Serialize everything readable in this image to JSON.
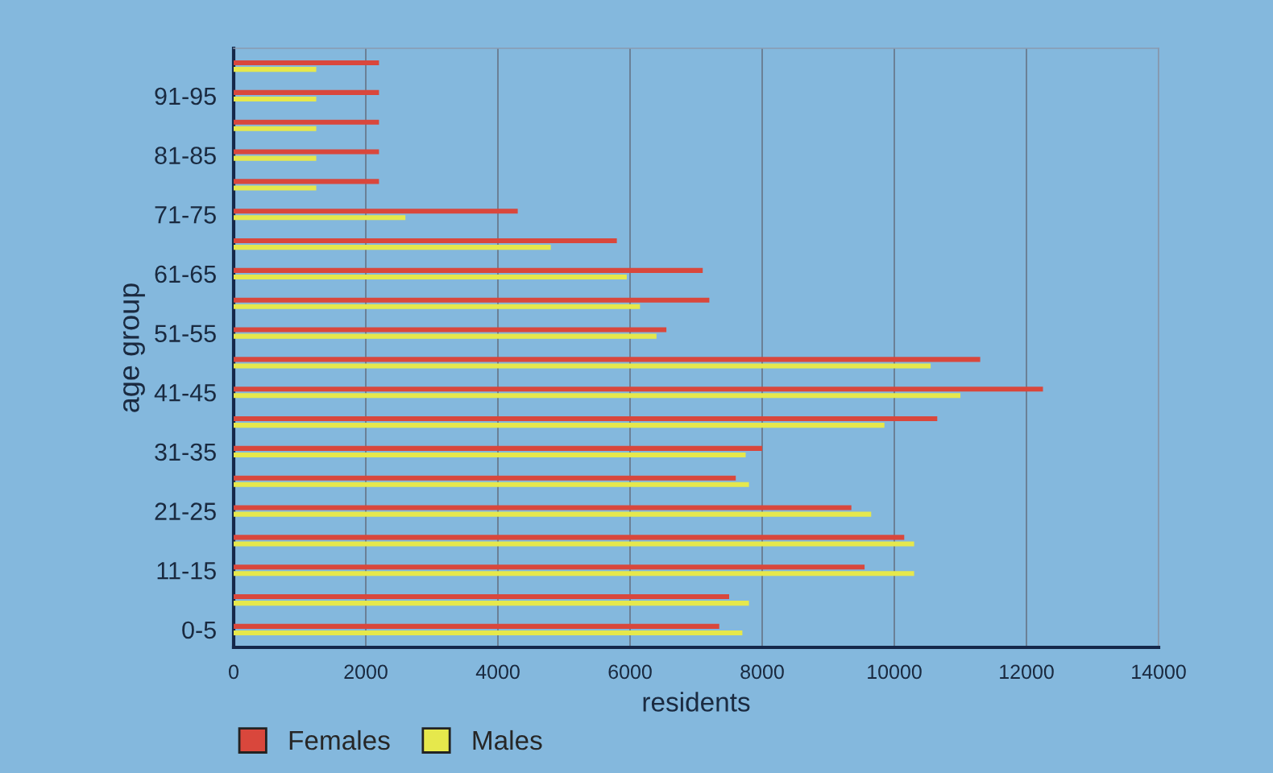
{
  "chart_data": {
    "type": "bar",
    "orientation": "horizontal",
    "xlabel": "residents",
    "ylabel": "age group",
    "categories": [
      null,
      "91-95",
      null,
      "81-85",
      null,
      "71-75",
      null,
      "61-65",
      null,
      "51-55",
      null,
      "41-45",
      null,
      "31-35",
      null,
      "21-25",
      null,
      "11-15",
      null,
      "0-5"
    ],
    "series": [
      {
        "name": "Females",
        "color": "#d9473c",
        "values": [
          2200,
          2200,
          2200,
          2200,
          2200,
          4300,
          5800,
          7100,
          7200,
          6550,
          11300,
          12250,
          10650,
          8000,
          7600,
          9350,
          10150,
          9550,
          7500,
          7350
        ]
      },
      {
        "name": "Males",
        "color": "#e6e84c",
        "values": [
          1250,
          1250,
          1250,
          1250,
          1250,
          2600,
          4800,
          5950,
          6150,
          6400,
          10550,
          11000,
          9850,
          7750,
          7800,
          9650,
          10300,
          10300,
          7800,
          7700
        ]
      }
    ],
    "xlim": [
      0,
      14000
    ],
    "xticks": [
      0,
      2000,
      4000,
      6000,
      8000,
      10000,
      12000,
      14000
    ],
    "grid": "x",
    "legend": "bottom left"
  }
}
